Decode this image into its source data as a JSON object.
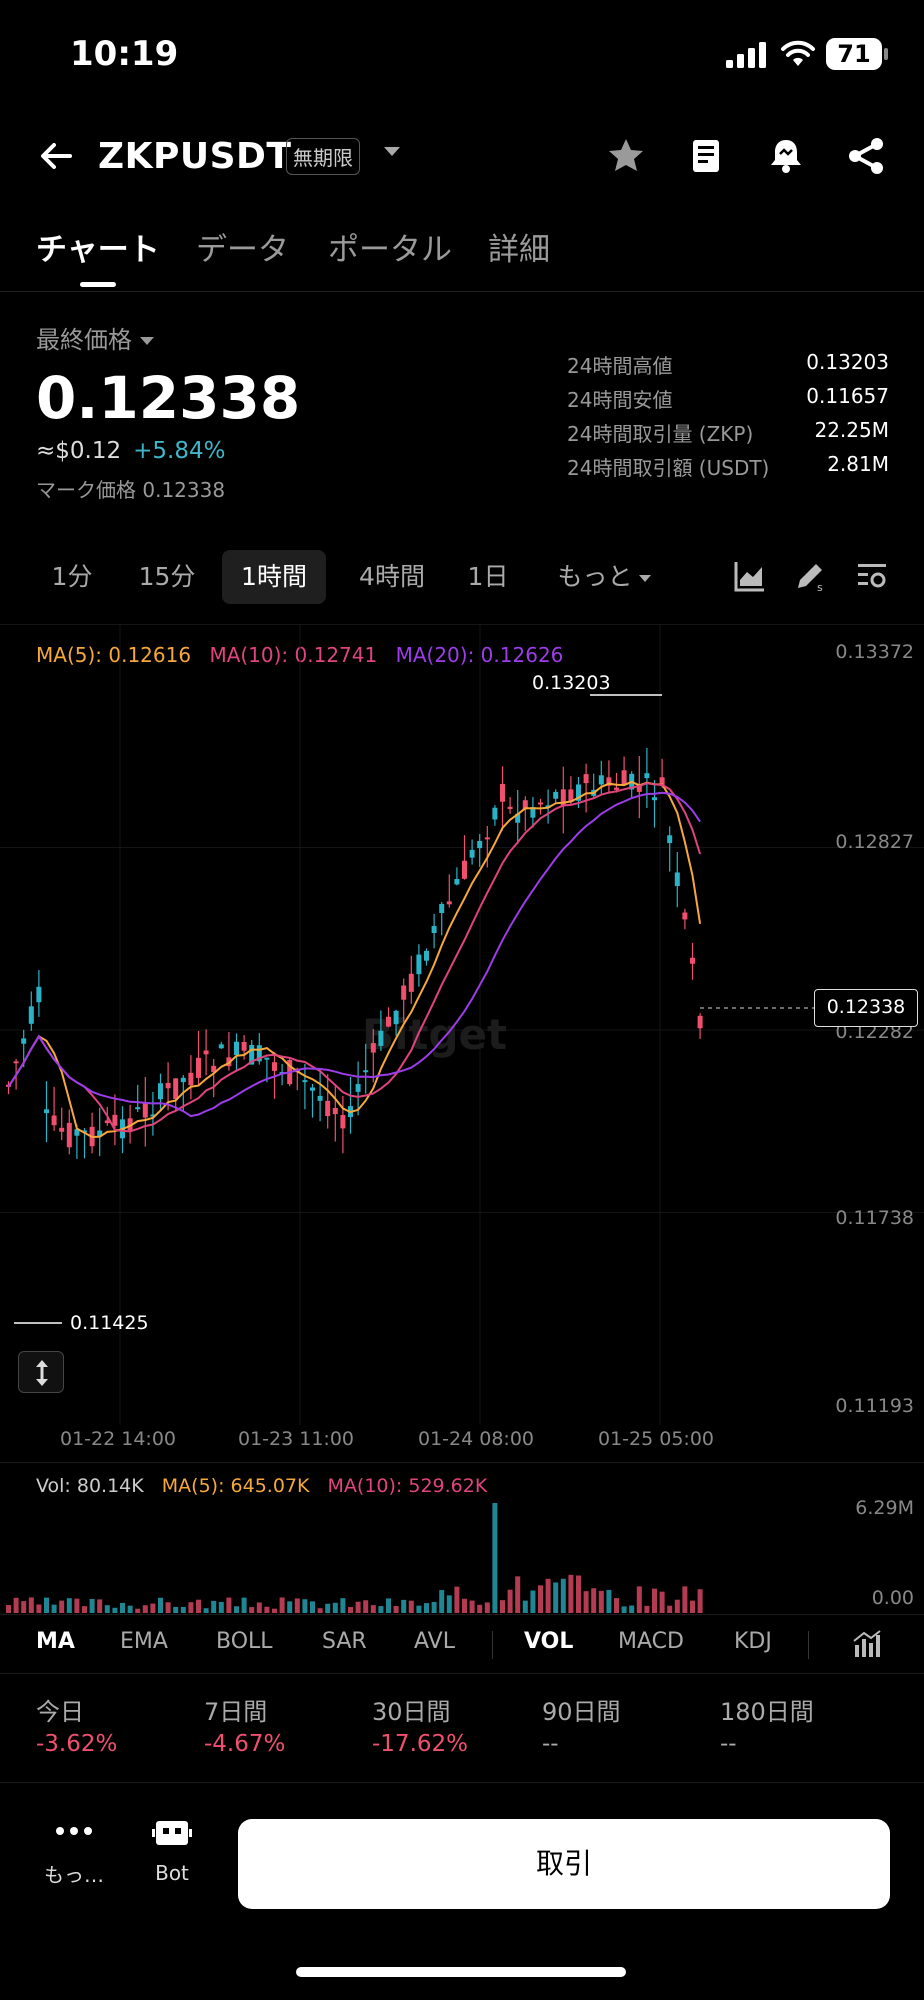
{
  "status_bar": {
    "time": "10:19",
    "battery": "71"
  },
  "header": {
    "symbol": "ZKPUSDT",
    "badge": "無期限"
  },
  "tabs": [
    {
      "label": "チャート"
    },
    {
      "label": "データ"
    },
    {
      "label": "ポータル"
    },
    {
      "label": "詳細"
    }
  ],
  "price": {
    "label": "最終価格",
    "last": "0.12338",
    "usd": "≈$0.12",
    "change": "+5.84%",
    "mark": "マーク価格 0.12338"
  },
  "stats": [
    {
      "label": "24時間高値",
      "value": "0.13203"
    },
    {
      "label": "24時間安値",
      "value": "0.11657"
    },
    {
      "label": "24時間取引量 (ZKP)",
      "value": "22.25M"
    },
    {
      "label": "24時間取引額 (USDT)",
      "value": "2.81M"
    }
  ],
  "timeframes": [
    {
      "label": "1分"
    },
    {
      "label": "15分"
    },
    {
      "label": "1時間"
    },
    {
      "label": "4時間"
    },
    {
      "label": "1日"
    },
    {
      "label": "もっと"
    }
  ],
  "chart": {
    "ma5": "MA(5): 0.12616",
    "ma10": "MA(10): 0.12741",
    "ma20": "MA(20): 0.12626",
    "y_labels": [
      "0.13372",
      "0.12827",
      "0.12282",
      "0.11738",
      "0.11193"
    ],
    "x_labels": [
      "01-22 14:00",
      "01-23 11:00",
      "01-24 08:00",
      "01-25 05:00"
    ],
    "high_label": "0.13203",
    "low_label": "0.11425",
    "current_price": "0.12338",
    "watermark": "Bitget",
    "colors": {
      "up": "#2ab3c6",
      "down": "#f0506e",
      "ma5": "#f6a83a",
      "ma10": "#e0447e",
      "ma20": "#9b3de8"
    }
  },
  "chart_data": {
    "type": "candlestick",
    "ylim": [
      0.11193,
      0.13372
    ],
    "y_ticks": [
      0.13372,
      0.12827,
      0.12282,
      0.11738,
      0.11193
    ],
    "high": 0.13203,
    "low": 0.11425,
    "last": 0.12338
  },
  "volume": {
    "vol": "Vol: 80.14K",
    "ma5": "MA(5): 645.07K",
    "ma10": "MA(10): 529.62K",
    "max_label": "6.29M",
    "min_label": "0.00"
  },
  "indicators": [
    {
      "label": "MA"
    },
    {
      "label": "EMA"
    },
    {
      "label": "BOLL"
    },
    {
      "label": "SAR"
    },
    {
      "label": "AVL"
    },
    {
      "label": "VOL"
    },
    {
      "label": "MACD"
    },
    {
      "label": "KDJ"
    }
  ],
  "performance": [
    {
      "label": "今日",
      "value": "-3.62%"
    },
    {
      "label": "7日間",
      "value": "-4.67%"
    },
    {
      "label": "30日間",
      "value": "-17.62%"
    },
    {
      "label": "90日間",
      "value": "--"
    },
    {
      "label": "180日間",
      "value": "--"
    }
  ],
  "bottom": {
    "more": "もっ…",
    "bot": "Bot",
    "trade": "取引"
  }
}
